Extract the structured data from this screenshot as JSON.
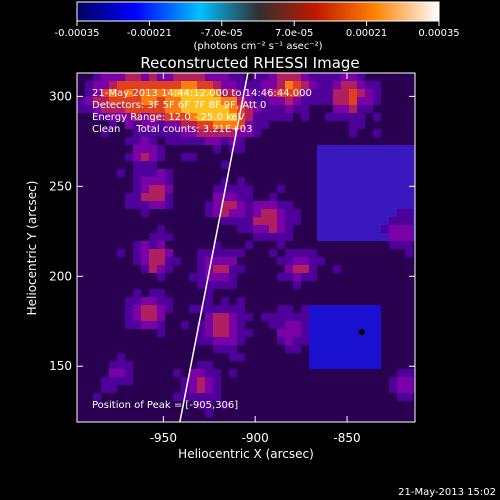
{
  "colorbar": {
    "tick_labels": [
      "-0.00035",
      "-0.00021",
      "-7.0e-05",
      "7.0e-05",
      "0.00021",
      "0.00035"
    ],
    "tick_values": [
      -0.00035,
      -0.00021,
      -7e-05,
      7e-05,
      0.00021,
      0.00035
    ],
    "range": [
      -0.00035,
      0.00035
    ],
    "units_label": "(photons cm⁻² s⁻¹ asec⁻²)",
    "colormap": [
      "#000080",
      "#0000ff",
      "#00b4ff",
      "#ffffff",
      "#ffd400",
      "#ff3000",
      "#600000"
    ]
  },
  "plot": {
    "title": "Reconstructed RHESSI Image",
    "annotations": [
      "21-May-2013 14:44:12.000 to 14:46:44.000",
      "Detectors: 3F 5F 6F 7F 8F 9F, Att 0",
      "Energy Range: 12.0 - 25.0 keV",
      "Clean     Total counts: 3.21E+03"
    ],
    "peak_label": "Position of Peak = [-905,306]",
    "xlabel": "Heliocentric X (arcsec)",
    "ylabel": "Heliocentric Y (arcsec)",
    "xlim": [
      -997,
      -813
    ],
    "ylim": [
      119,
      313
    ],
    "xticks": [
      -950,
      -900,
      -850
    ],
    "xtick_labels": [
      "-950",
      "-900",
      "-850"
    ],
    "yticks": [
      150,
      200,
      250,
      300
    ],
    "ytick_labels": [
      "150",
      "200",
      "250",
      "300"
    ],
    "limb_line": [
      [
        -941,
        119
      ],
      [
        -904,
        313
      ]
    ],
    "image_palette": [
      "#2a0050",
      "#50009a",
      "#7a00a8",
      "#b02060",
      "#e04020",
      "#ff7a10",
      "#ffc020"
    ]
  },
  "footer_timestamp": "21-May-2013 15:02"
}
